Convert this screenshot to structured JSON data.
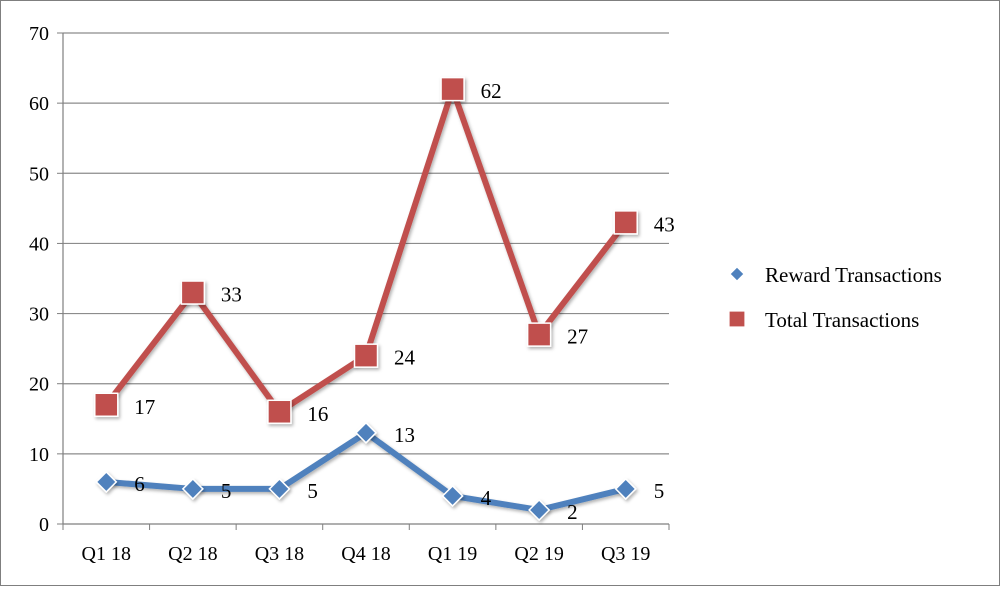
{
  "chart_data": {
    "type": "line",
    "title": "",
    "xlabel": "",
    "ylabel": "",
    "categories": [
      "Q1 18",
      "Q2 18",
      "Q3 18",
      "Q4 18",
      "Q1 19",
      "Q2 19",
      "Q3 19"
    ],
    "series": [
      {
        "name": "Reward Transactions",
        "values": [
          6,
          5,
          5,
          13,
          4,
          2,
          5
        ],
        "color": "#4f81bd",
        "marker": "diamond"
      },
      {
        "name": "Total Transactions",
        "values": [
          17,
          33,
          16,
          24,
          62,
          27,
          43
        ],
        "color": "#c0504d",
        "marker": "square"
      }
    ],
    "ylim": [
      0,
      70
    ],
    "yticks": [
      0,
      10,
      20,
      30,
      40,
      50,
      60,
      70
    ],
    "grid": true,
    "legend_position": "right",
    "data_labels": true
  }
}
